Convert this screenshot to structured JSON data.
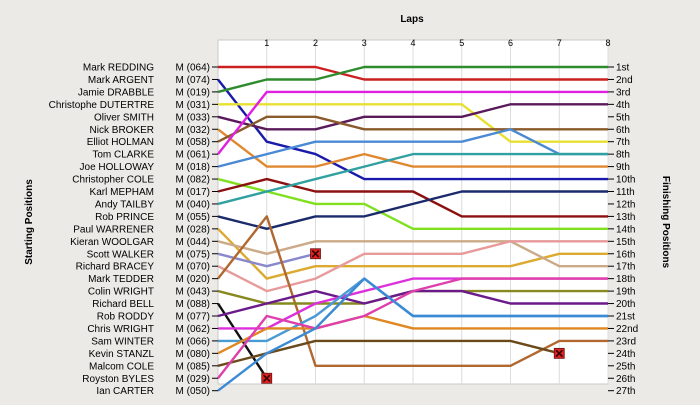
{
  "chart_data": {
    "type": "line",
    "title": "",
    "x_axis_title": "Laps",
    "left_axis_title": "Starting Positions",
    "right_axis_title": "Finishing Positions",
    "laps": [
      1,
      2,
      3,
      4,
      5,
      6,
      7,
      8
    ],
    "finishing_labels": [
      "1st",
      "2nd",
      "3rd",
      "4th",
      "5th",
      "6th",
      "7th",
      "8th",
      "9th",
      "10th",
      "11th",
      "12th",
      "13th",
      "14th",
      "15th",
      "16th",
      "17th",
      "18th",
      "19th",
      "20th",
      "21st",
      "22nd",
      "23rd",
      "24th",
      "25th",
      "26th",
      "27th"
    ],
    "series": [
      {
        "name": "Mark REDDING",
        "category": "M (064)",
        "color": "#cc2020",
        "positions": [
          1,
          1,
          1,
          2,
          2,
          2,
          2,
          2,
          2
        ]
      },
      {
        "name": "Mark ARGENT",
        "category": "M (074)",
        "color": "#1a1aaa",
        "positions": [
          2,
          7,
          8,
          10,
          10,
          10,
          10,
          10,
          10
        ]
      },
      {
        "name": "Jamie DRABBLE",
        "category": "M (019)",
        "color": "#2e8b2e",
        "positions": [
          3,
          2,
          2,
          1,
          1,
          1,
          1,
          1,
          1
        ]
      },
      {
        "name": "Christophe DUTERTRE",
        "category": "M (031)",
        "color": "#e8e030",
        "positions": [
          4,
          4,
          4,
          4,
          4,
          4,
          7,
          7,
          7
        ]
      },
      {
        "name": "Oliver SMITH",
        "category": "M (033)",
        "color": "#5a1a5a",
        "positions": [
          5,
          6,
          6,
          5,
          5,
          5,
          4,
          4,
          4
        ]
      },
      {
        "name": "Nick BROKER",
        "category": "M (032)",
        "color": "#e08830",
        "positions": [
          6,
          9,
          9,
          8,
          9,
          9,
          9,
          9,
          9
        ]
      },
      {
        "name": "Elliot HOLMAN",
        "category": "M (058)",
        "color": "#8b5a2b",
        "positions": [
          7,
          5,
          5,
          6,
          6,
          6,
          6,
          6,
          6
        ]
      },
      {
        "name": "Tom CLARKE",
        "category": "M (061)",
        "color": "#e020e0",
        "positions": [
          8,
          3,
          3,
          3,
          3,
          3,
          3,
          3,
          3
        ]
      },
      {
        "name": "Joe HOLLOWAY",
        "category": "M (018)",
        "color": "#4a8ad4",
        "positions": [
          9,
          8,
          7,
          7,
          7,
          7,
          6,
          8,
          8
        ]
      },
      {
        "name": "Christopher COLE",
        "category": "M (082)",
        "color": "#80e020",
        "positions": [
          10,
          11,
          12,
          12,
          14,
          14,
          14,
          14,
          14
        ]
      },
      {
        "name": "Karl MEPHAM",
        "category": "M (017)",
        "color": "#8b1010",
        "positions": [
          11,
          10,
          11,
          11,
          11,
          13,
          13,
          13,
          13
        ]
      },
      {
        "name": "Andy TAILBY",
        "category": "M (040)",
        "color": "#30a0a0",
        "positions": [
          12,
          11,
          10,
          9,
          8,
          8,
          8,
          8,
          8
        ]
      },
      {
        "name": "Rob PRINCE",
        "category": "M (055)",
        "color": "#1a2a6a",
        "positions": [
          13,
          14,
          13,
          13,
          12,
          11,
          11,
          11,
          11
        ]
      },
      {
        "name": "Paul WARRENER",
        "category": "M (028)",
        "color": "#ddaa30",
        "positions": [
          14,
          18,
          17,
          17,
          17,
          17,
          17,
          16,
          16
        ]
      },
      {
        "name": "Kieran WOOLGAR",
        "category": "M (044)",
        "color": "#ccaa88",
        "positions": [
          15,
          16,
          15,
          15,
          15,
          15,
          15,
          17,
          17
        ]
      },
      {
        "name": "Scott WALKER",
        "category": "M (075)",
        "color": "#8888cc",
        "positions": [
          16,
          17,
          16
        ],
        "dnf_lap": 2
      },
      {
        "name": "Richard BRACEY",
        "category": "M (070)",
        "color": "#e89a9a",
        "positions": [
          17,
          19,
          18,
          16,
          16,
          16,
          15,
          15,
          15
        ]
      },
      {
        "name": "Mark TEDDER",
        "category": "M (020)",
        "color": "#b06830",
        "positions": [
          18,
          13,
          25,
          25,
          25,
          25,
          25,
          23,
          23
        ]
      },
      {
        "name": "Colin WRIGHT",
        "category": "M (043)",
        "color": "#888820",
        "positions": [
          19,
          20,
          20,
          20,
          19,
          19,
          19,
          19,
          19
        ]
      },
      {
        "name": "Richard BELL",
        "category": "M (088)",
        "color": "#101010",
        "positions": [
          20,
          26
        ],
        "dnf_lap": 1
      },
      {
        "name": "Rob RODDY",
        "category": "M (077)",
        "color": "#6a1a8a",
        "positions": [
          21,
          20,
          19,
          20,
          19,
          19,
          20,
          20,
          20
        ]
      },
      {
        "name": "Chris WRIGHT",
        "category": "M (062)",
        "color": "#dd30dd",
        "positions": [
          22,
          22,
          20,
          19,
          18,
          18,
          18,
          18,
          18
        ]
      },
      {
        "name": "Sam WINTER",
        "category": "M (066)",
        "color": "#4a9ad4",
        "positions": [
          23,
          23,
          21,
          18,
          21,
          21,
          21,
          21,
          21
        ]
      },
      {
        "name": "Kevin STANZL",
        "category": "M (080)",
        "color": "#e08820",
        "positions": [
          24,
          22,
          22,
          21,
          22,
          22,
          22,
          22,
          22
        ]
      },
      {
        "name": "Malcom COLE",
        "category": "M (085)",
        "color": "#6a4a1a",
        "positions": [
          25,
          24,
          23,
          23,
          23,
          23,
          23,
          24
        ],
        "dnf_lap": 7
      },
      {
        "name": "Royston BYLES",
        "category": "M (029)",
        "color": "#dd40aa",
        "positions": [
          26,
          21,
          22,
          21,
          19,
          18,
          18,
          18,
          18
        ]
      },
      {
        "name": "Ian CARTER",
        "category": "M (050)",
        "color": "#3a8ad4",
        "positions": [
          27,
          24,
          22,
          18,
          21,
          21,
          21,
          21,
          21
        ]
      }
    ]
  }
}
